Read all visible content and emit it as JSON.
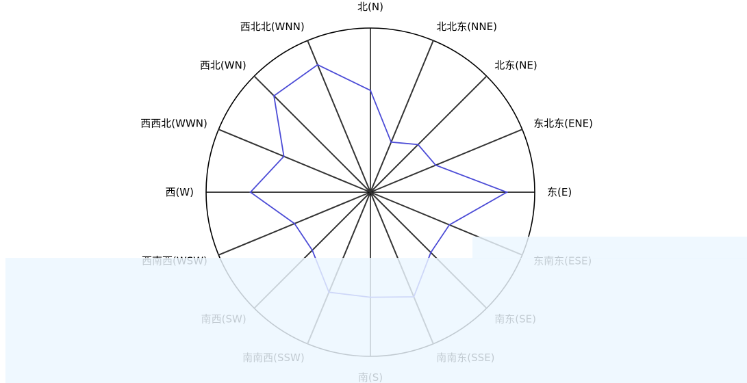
{
  "chart_data": {
    "type": "radar",
    "directions": [
      "北(N)",
      "北北东(NNE)",
      "北东(NE)",
      "东北东(ENE)",
      "东(E)",
      "东南东(ESE)",
      "南东(SE)",
      "南南东(SSE)",
      "南(S)",
      "南南西(SSW)",
      "南西(SW)",
      "西南西(WSW)",
      "西(W)",
      "西西北(WWN)",
      "西北(WN)",
      "西北北(WNN)"
    ],
    "series": [
      {
        "values": [
          0.62,
          0.33,
          0.41,
          0.43,
          0.83,
          0.52,
          0.52,
          0.69,
          0.64,
          0.66,
          0.5,
          0.5,
          0.73,
          0.57,
          0.83,
          0.84
        ]
      }
    ],
    "rmax": 1,
    "grid": true,
    "legend": "none"
  },
  "colors": {
    "series": "#4b4bd6",
    "grid": "#333333",
    "rim": "#000000",
    "band": "#e6f3ff"
  }
}
